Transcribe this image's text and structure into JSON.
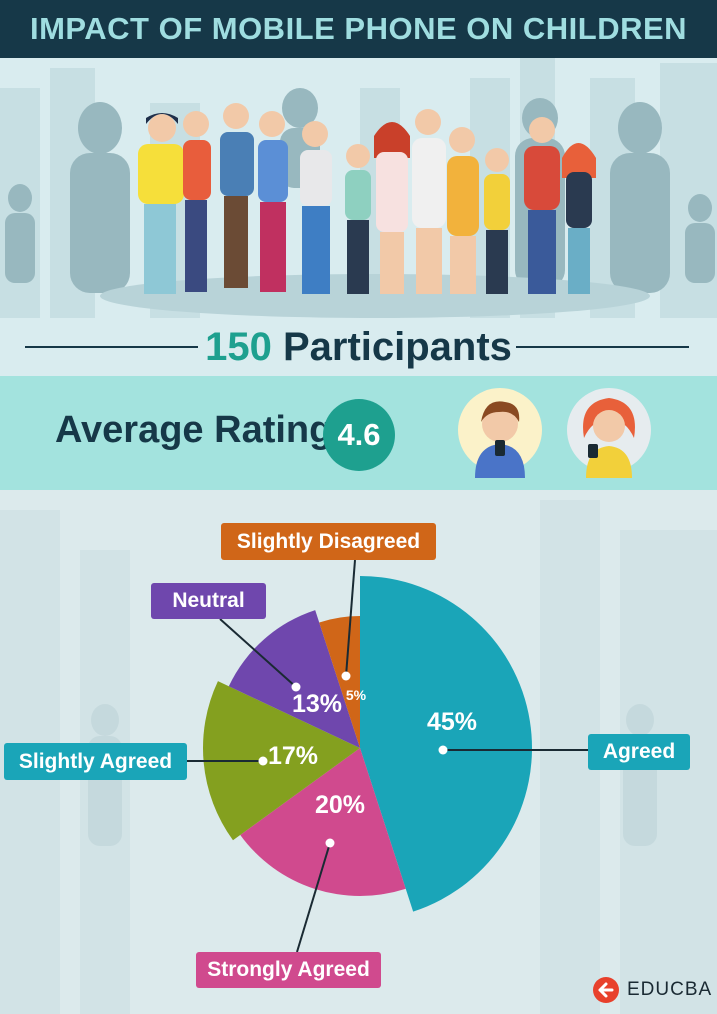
{
  "header": {
    "title": "IMPACT OF MOBILE PHONE ON CHILDREN"
  },
  "participants": {
    "count": "150",
    "label": "Participants"
  },
  "rating": {
    "label": "Average Rating",
    "value": "4.6"
  },
  "brand": {
    "name": "EDUCBA"
  },
  "colors": {
    "header_bg": "#163848",
    "accent": "#1ea08f",
    "band": "#a3e3de"
  },
  "chart_data": {
    "type": "pie",
    "title": "",
    "slices": [
      {
        "label": "Agreed",
        "value": 45,
        "display": "45%",
        "color": "#1aa5b8"
      },
      {
        "label": "Strongly Agreed",
        "value": 20,
        "display": "20%",
        "color": "#d04a8e"
      },
      {
        "label": "Slightly Agreed",
        "value": 17,
        "display": "17%",
        "color": "#84a01f"
      },
      {
        "label": "Neutral",
        "value": 13,
        "display": "13%",
        "color": "#6f47ad"
      },
      {
        "label": "Slightly Disagreed",
        "value": 5,
        "display": "5%",
        "color": "#d06618"
      }
    ]
  }
}
